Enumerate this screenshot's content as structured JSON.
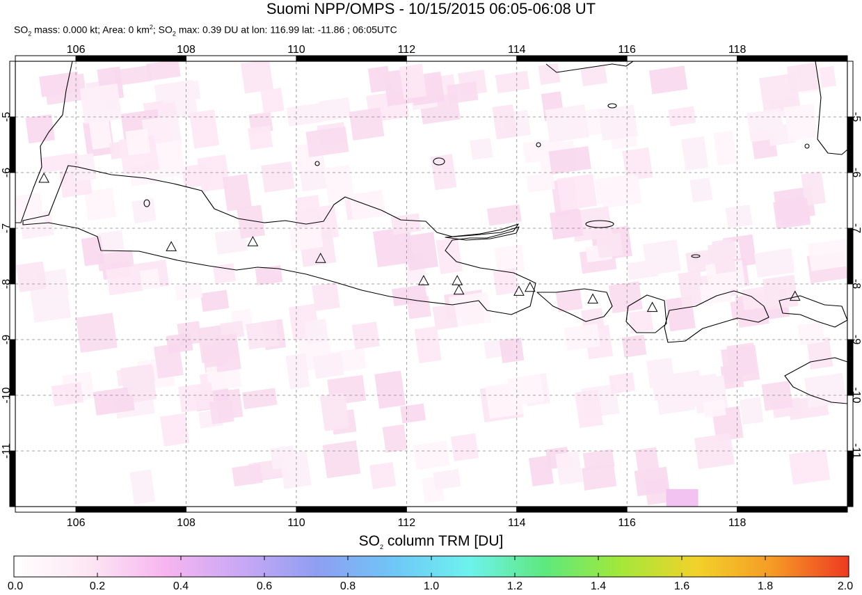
{
  "title": "Suomi NPP/OMPS - 10/15/2015 06:05-06:08 UT",
  "subtitle": {
    "so2_mass_label": "SO",
    "so2_mass_text": " mass: 0.000 kt; Area: 0 km",
    "so2_max_label": "; SO",
    "so2_max_text": " max: 0.39 DU at lon: 116.99 lat: -11.86 ; 06:05UTC"
  },
  "map": {
    "lon_range": [
      104.9,
      120.0
    ],
    "lat_range": [
      -12.0,
      -4.0
    ],
    "lon_ticks": [
      "106",
      "108",
      "110",
      "112",
      "114",
      "116",
      "118"
    ],
    "lat_ticks": [
      "-5",
      "-6",
      "-7",
      "-8",
      "-9",
      "-10",
      "-11"
    ],
    "volcanoes": [
      {
        "lon": 105.42,
        "lat": -6.1
      },
      {
        "lon": 107.73,
        "lat": -7.33
      },
      {
        "lon": 109.21,
        "lat": -7.24
      },
      {
        "lon": 110.44,
        "lat": -7.54
      },
      {
        "lon": 112.31,
        "lat": -7.94
      },
      {
        "lon": 112.92,
        "lat": -7.94
      },
      {
        "lon": 112.95,
        "lat": -8.11
      },
      {
        "lon": 114.04,
        "lat": -8.13
      },
      {
        "lon": 114.24,
        "lat": -8.06
      },
      {
        "lon": 115.38,
        "lat": -8.27
      },
      {
        "lon": 116.46,
        "lat": -8.42
      },
      {
        "lon": 119.05,
        "lat": -8.22
      }
    ],
    "so2_max_location": {
      "lon": 116.99,
      "lat": -11.86,
      "value": 0.39
    }
  },
  "colorbar": {
    "title_prefix": "SO",
    "title_suffix": " column TRM [DU]",
    "labels": [
      "0.0",
      "0.2",
      "0.4",
      "0.6",
      "0.8",
      "1.0",
      "1.2",
      "1.4",
      "1.6",
      "1.8",
      "2.0"
    ],
    "colors": [
      "#ffffff",
      "#fde6f3",
      "#f7b5f0",
      "#c9a8f5",
      "#8f9ef2",
      "#6fc6f7",
      "#6ef2ee",
      "#5ee87e",
      "#a3e83a",
      "#f2d22a",
      "#f59a25",
      "#ee3a22"
    ]
  }
}
